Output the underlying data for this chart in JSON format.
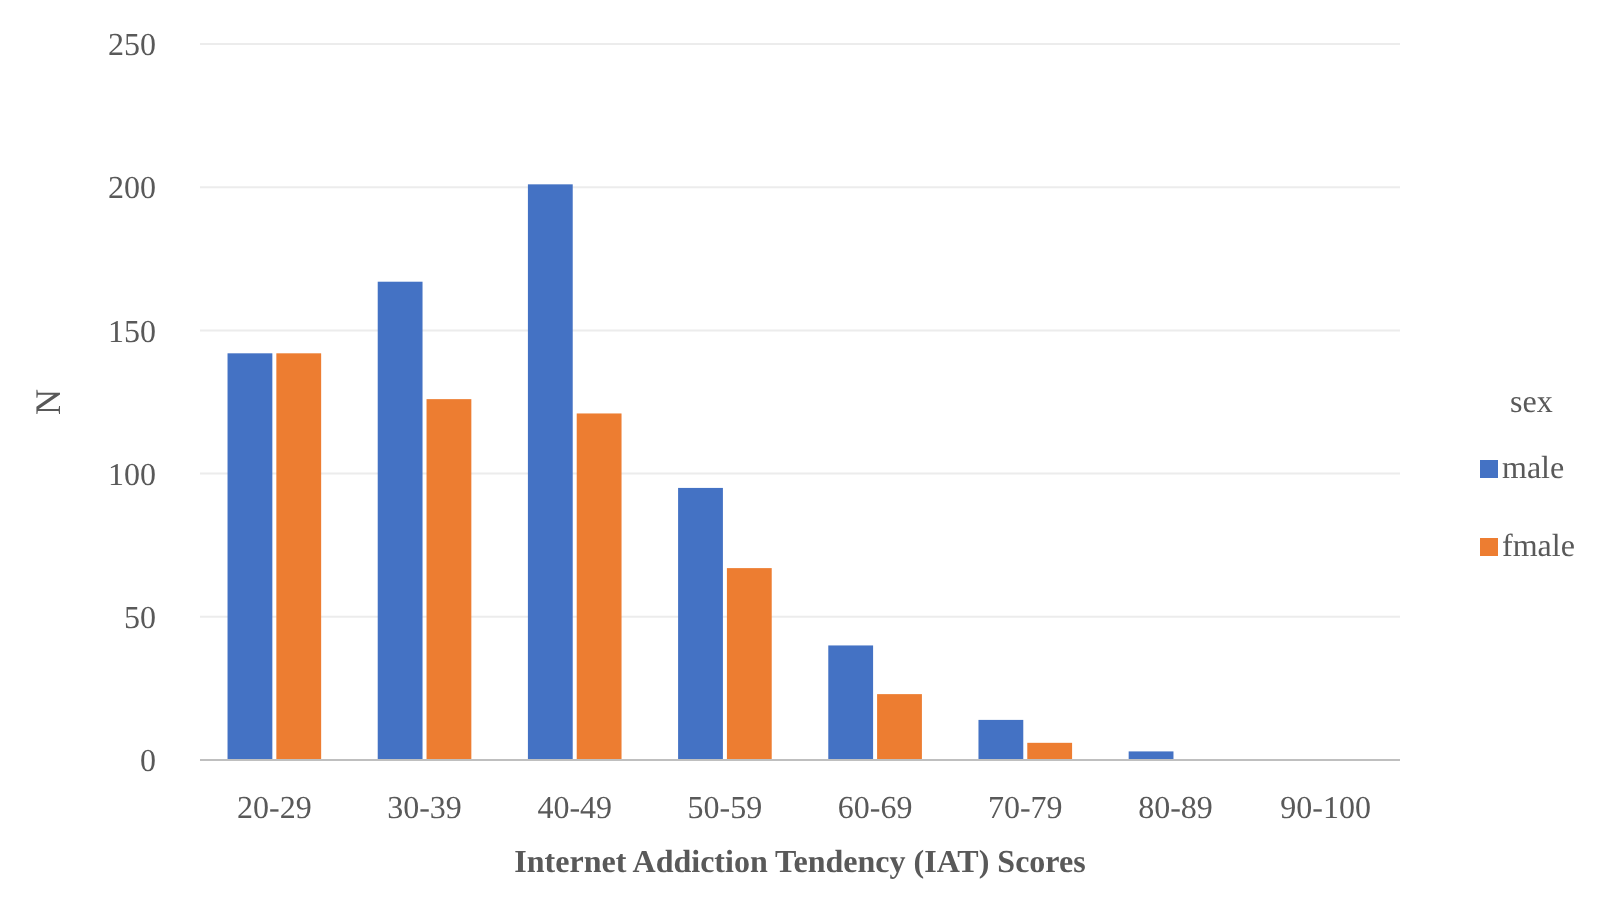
{
  "chart_data": {
    "type": "bar",
    "xlabel": "Internet Addiction Tendency (IAT) Scores",
    "ylabel": "N",
    "legend_title": "sex",
    "legend": "right",
    "categories": [
      "20-29",
      "30-39",
      "40-49",
      "50-59",
      "60-69",
      "70-79",
      "80-89",
      "90-100"
    ],
    "series": [
      {
        "name": "male",
        "color": "#4472c4",
        "values": [
          142,
          167,
          201,
          95,
          40,
          14,
          3,
          0
        ]
      },
      {
        "name": "fmale",
        "color": "#ed7d31",
        "values": [
          142,
          126,
          121,
          67,
          23,
          6,
          0,
          0
        ]
      }
    ],
    "ylim": [
      0,
      250
    ],
    "yticks": [
      0,
      50,
      100,
      150,
      200,
      250
    ],
    "grid": "y"
  }
}
